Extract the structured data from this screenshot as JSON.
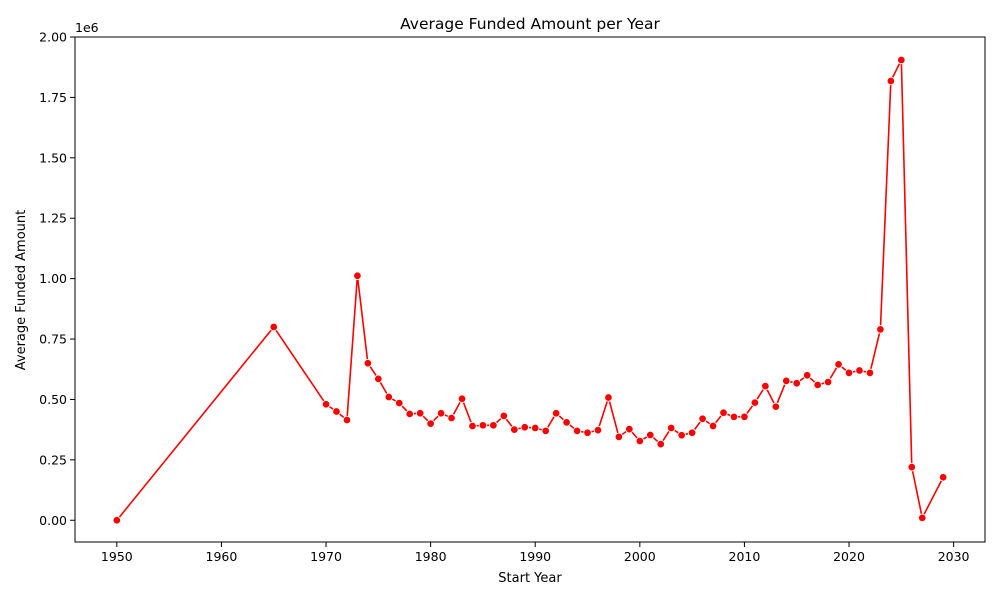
{
  "chart_data": {
    "type": "line",
    "title": "Average Funded Amount per Year",
    "xlabel": "Start Year",
    "ylabel": "Average Funded Amount",
    "y_offset_text": "1e6",
    "xlim": [
      1946,
      2033
    ],
    "ylim": [
      -90000,
      2000000
    ],
    "x_ticks": [
      1950,
      1960,
      1970,
      1980,
      1990,
      2000,
      2010,
      2020,
      2030
    ],
    "x_tick_labels": [
      "1950",
      "1960",
      "1970",
      "1980",
      "1990",
      "2000",
      "2010",
      "2020",
      "2030"
    ],
    "y_ticks": [
      0,
      250000,
      500000,
      750000,
      1000000,
      1250000,
      1500000,
      1750000,
      2000000
    ],
    "y_tick_labels": [
      "0.00",
      "0.25",
      "0.50",
      "0.75",
      "1.00",
      "1.25",
      "1.50",
      "1.75",
      "2.00"
    ],
    "grid": false,
    "line_color": "#ff0000",
    "marker_color": "#ff0000",
    "series": [
      {
        "x": [
          1950,
          1965,
          1970,
          1971,
          1972,
          1973,
          1974,
          1975,
          1976,
          1977,
          1978,
          1979,
          1980,
          1981,
          1982,
          1983,
          1984,
          1985,
          1986,
          1987,
          1988,
          1989,
          1990,
          1991,
          1992,
          1993,
          1994,
          1995,
          1996,
          1997,
          1998,
          1999,
          2000,
          2001,
          2002,
          2003,
          2004,
          2005,
          2006,
          2007,
          2008,
          2009,
          2010,
          2011,
          2012,
          2013,
          2014,
          2015,
          2016,
          2017,
          2018,
          2019,
          2020,
          2021,
          2022,
          2023,
          2024,
          2025,
          2026,
          2027,
          2029
        ],
        "values": [
          0,
          800000,
          480000,
          450000,
          415000,
          1012000,
          650000,
          585000,
          510000,
          485000,
          440000,
          443000,
          400000,
          443000,
          423000,
          503000,
          390000,
          393000,
          393000,
          432000,
          375000,
          385000,
          382000,
          370000,
          443000,
          405000,
          370000,
          362000,
          373000,
          508000,
          345000,
          377000,
          328000,
          353000,
          315000,
          382000,
          352000,
          362000,
          420000,
          390000,
          445000,
          428000,
          428000,
          487000,
          555000,
          470000,
          577000,
          567000,
          600000,
          560000,
          572000,
          645000,
          610000,
          620000,
          610000,
          790000,
          1818000,
          1905000,
          220000,
          10000,
          178000
        ]
      }
    ]
  }
}
